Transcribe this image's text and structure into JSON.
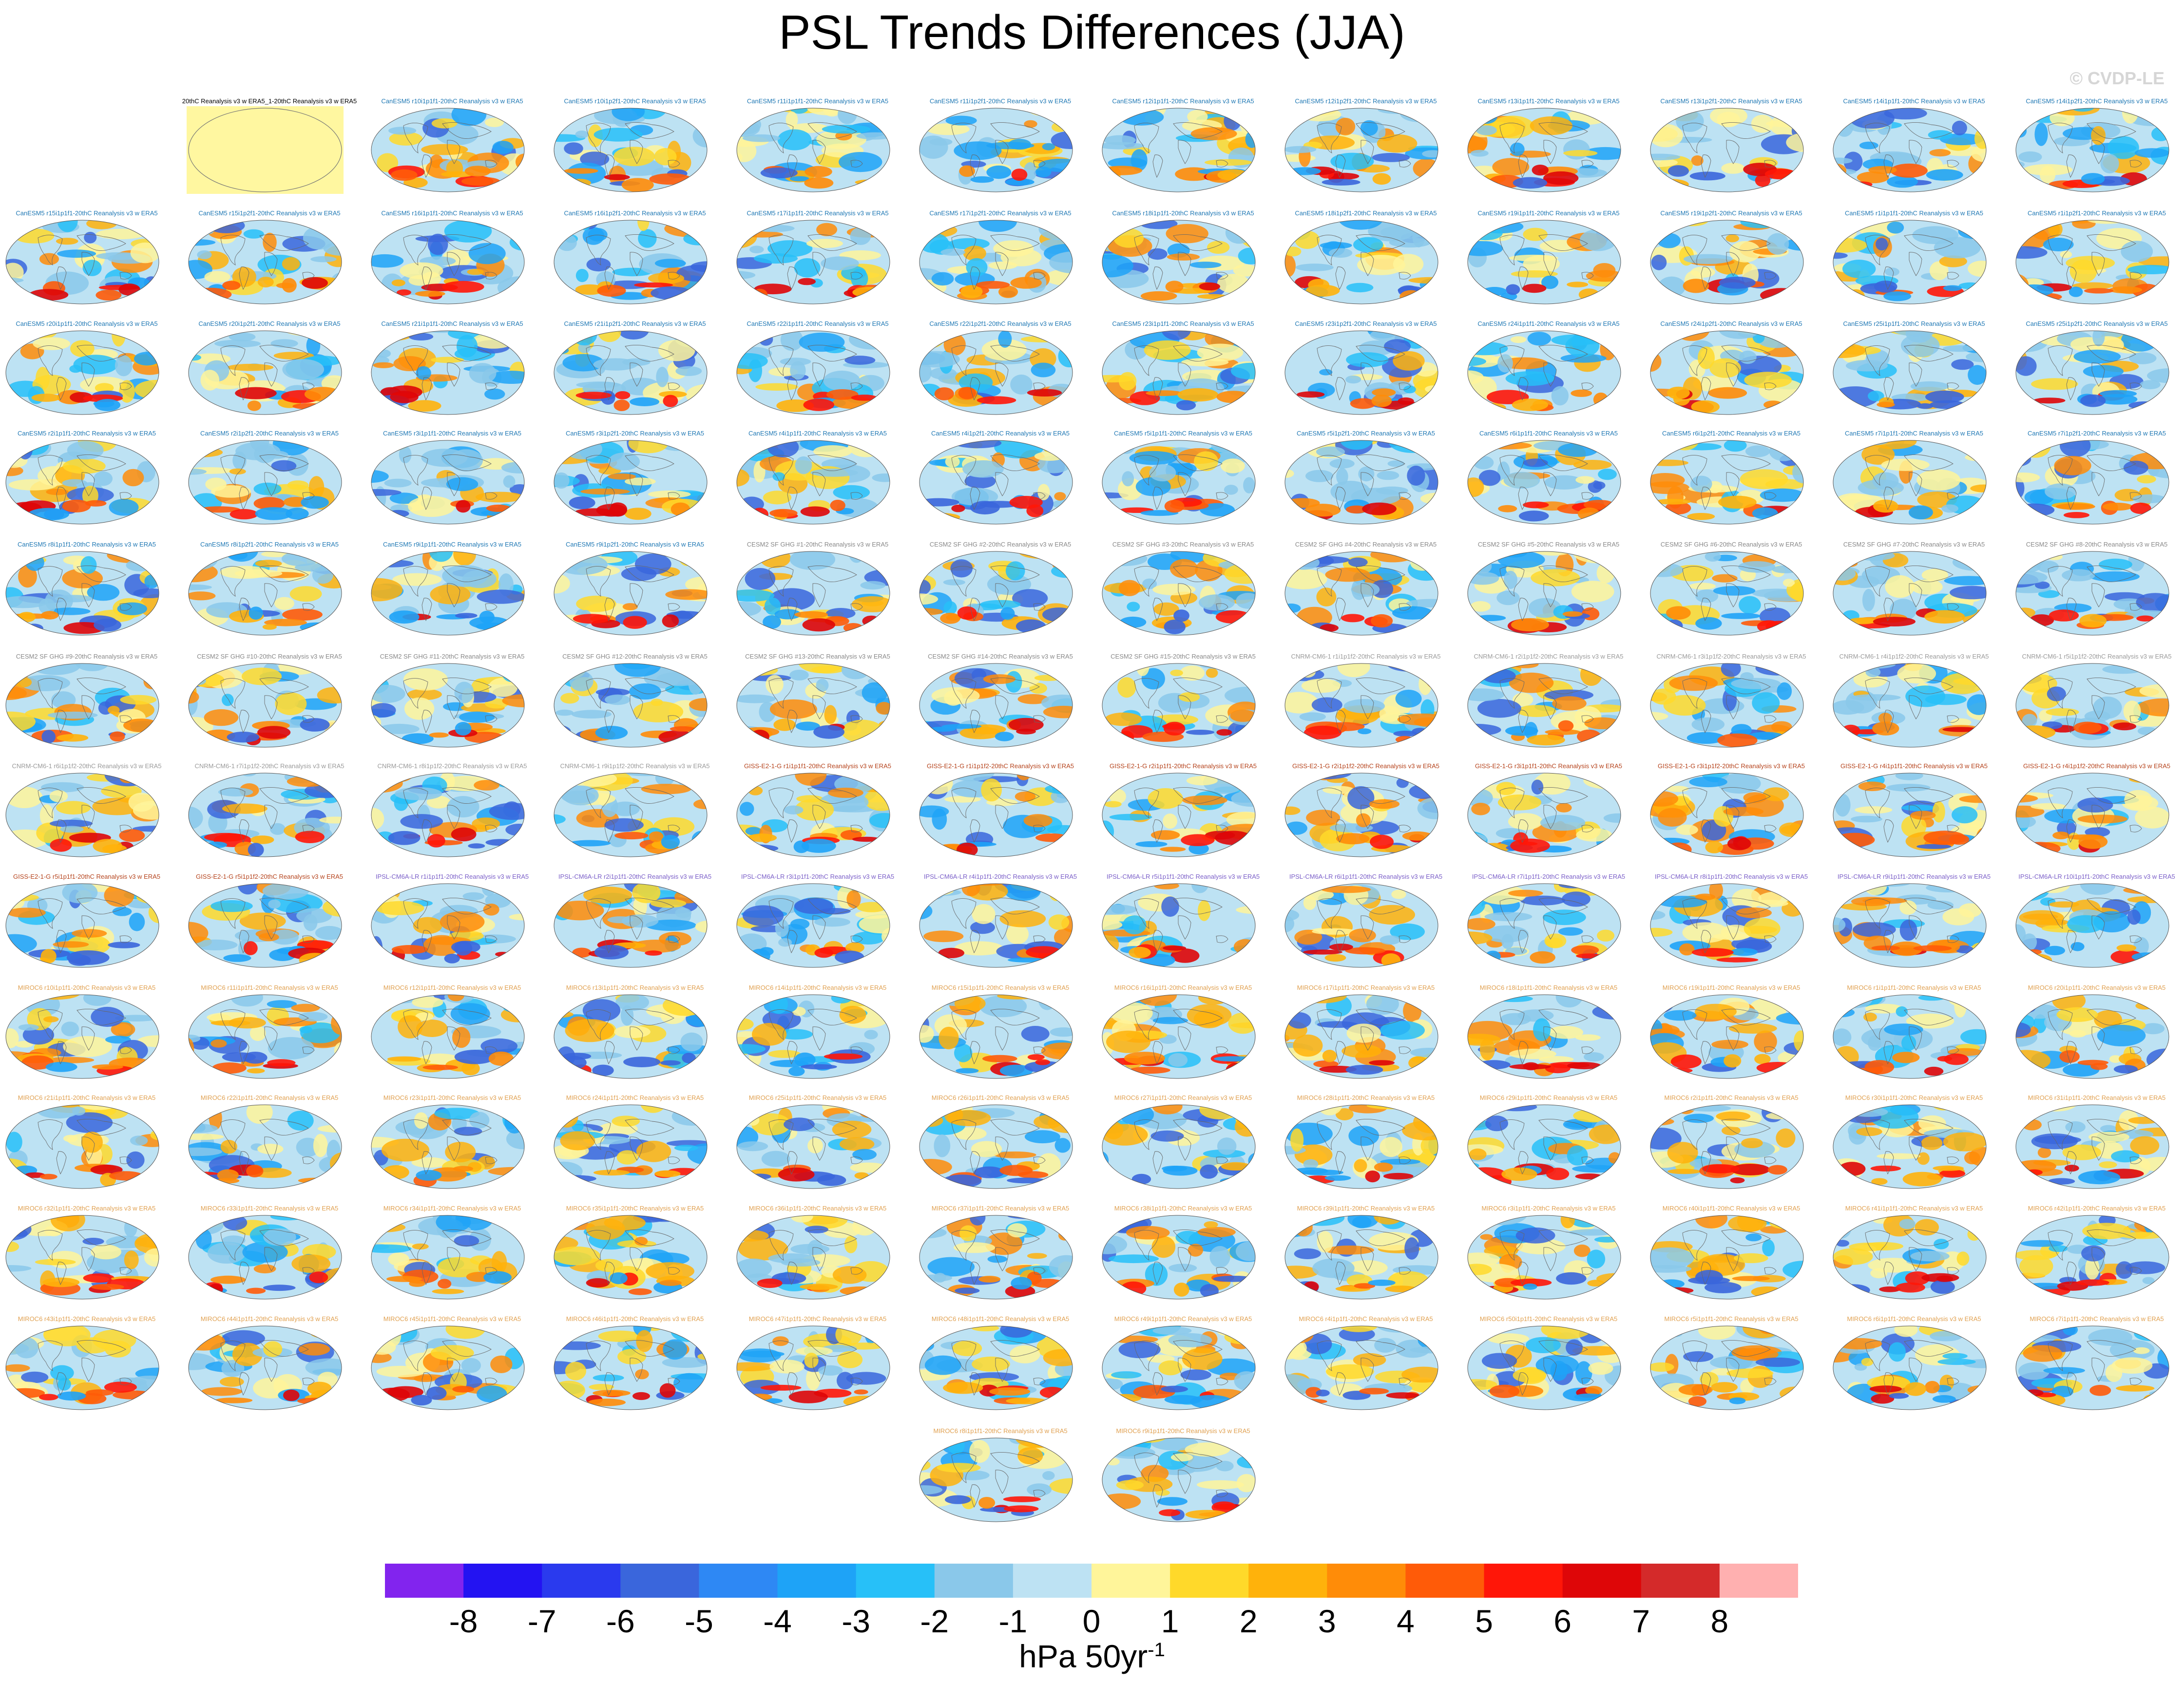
{
  "title": "PSL Trends Differences (JJA)",
  "copyright": "© CVDP-LE",
  "colors": {
    "canesm_label": "#1f78b4",
    "cesm_label": "#888888",
    "cnrm_label": "#9a9a9a",
    "giss_label": "#b5431c",
    "ipsl_label": "#7a5ec8",
    "miroc_label": "#e0a050",
    "obs_label": "#000000",
    "obs_fill": "#fff7a0",
    "ocean_base": "#bde2f3"
  },
  "chart_data": {
    "type": "heatmap",
    "title": "PSL Trends Differences (JJA)",
    "units": "hPa 50yr",
    "units_exponent": "-1",
    "colorbar": {
      "ticks": [
        "-8",
        "-7",
        "-6",
        "-5",
        "-4",
        "-3",
        "-2",
        "-1",
        "0",
        "1",
        "2",
        "3",
        "4",
        "5",
        "6",
        "7",
        "8"
      ],
      "levels": [
        -8,
        -7,
        -6,
        -5,
        -4,
        -3,
        -2,
        -1,
        0,
        1,
        2,
        3,
        4,
        5,
        6,
        7,
        8
      ],
      "colors": [
        "#8224ee",
        "#2313f2",
        "#2a3aee",
        "#3a66dc",
        "#2e88f4",
        "#1ea3f7",
        "#27c0f8",
        "#8ac8ea",
        "#bde2f3",
        "#fff59a",
        "#ffd92a",
        "#ffb20b",
        "#ff8c08",
        "#ff5b08",
        "#ff1608",
        "#de0608",
        "#d42a2a",
        "#ffb0b0"
      ]
    },
    "panels": [
      {
        "label": "20thC Reanalysis v3 w ERA5_1-20thC Reanalysis v3 w ERA5",
        "group": "obs"
      },
      {
        "label": "CanESM5 r10i1p1f1-20thC Reanalysis v3 w ERA5",
        "group": "canesm"
      },
      {
        "label": "CanESM5 r10i1p2f1-20thC Reanalysis v3 w ERA5",
        "group": "canesm"
      },
      {
        "label": "CanESM5 r11i1p1f1-20thC Reanalysis v3 w ERA5",
        "group": "canesm"
      },
      {
        "label": "CanESM5 r11i1p2f1-20thC Reanalysis v3 w ERA5",
        "group": "canesm"
      },
      {
        "label": "CanESM5 r12i1p1f1-20thC Reanalysis v3 w ERA5",
        "group": "canesm"
      },
      {
        "label": "CanESM5 r12i1p2f1-20thC Reanalysis v3 w ERA5",
        "group": "canesm"
      },
      {
        "label": "CanESM5 r13i1p1f1-20thC Reanalysis v3 w ERA5",
        "group": "canesm"
      },
      {
        "label": "CanESM5 r13i1p2f1-20thC Reanalysis v3 w ERA5",
        "group": "canesm"
      },
      {
        "label": "CanESM5 r14i1p1f1-20thC Reanalysis v3 w ERA5",
        "group": "canesm"
      },
      {
        "label": "CanESM5 r14i1p2f1-20thC Reanalysis v3 w ERA5",
        "group": "canesm"
      },
      {
        "label": "CanESM5 r15i1p1f1-20thC Reanalysis v3 w ERA5",
        "group": "canesm"
      },
      {
        "label": "CanESM5 r15i1p2f1-20thC Reanalysis v3 w ERA5",
        "group": "canesm"
      },
      {
        "label": "CanESM5 r16i1p1f1-20thC Reanalysis v3 w ERA5",
        "group": "canesm"
      },
      {
        "label": "CanESM5 r16i1p2f1-20thC Reanalysis v3 w ERA5",
        "group": "canesm"
      },
      {
        "label": "CanESM5 r17i1p1f1-20thC Reanalysis v3 w ERA5",
        "group": "canesm"
      },
      {
        "label": "CanESM5 r17i1p2f1-20thC Reanalysis v3 w ERA5",
        "group": "canesm"
      },
      {
        "label": "CanESM5 r18i1p1f1-20thC Reanalysis v3 w ERA5",
        "group": "canesm"
      },
      {
        "label": "CanESM5 r18i1p2f1-20thC Reanalysis v3 w ERA5",
        "group": "canesm"
      },
      {
        "label": "CanESM5 r19i1p1f1-20thC Reanalysis v3 w ERA5",
        "group": "canesm"
      },
      {
        "label": "CanESM5 r19i1p2f1-20thC Reanalysis v3 w ERA5",
        "group": "canesm"
      },
      {
        "label": "CanESM5 r1i1p1f1-20thC Reanalysis v3 w ERA5",
        "group": "canesm"
      },
      {
        "label": "CanESM5 r1i1p2f1-20thC Reanalysis v3 w ERA5",
        "group": "canesm"
      },
      {
        "label": "CanESM5 r20i1p1f1-20thC Reanalysis v3 w ERA5",
        "group": "canesm"
      },
      {
        "label": "CanESM5 r20i1p2f1-20thC Reanalysis v3 w ERA5",
        "group": "canesm"
      },
      {
        "label": "CanESM5 r21i1p1f1-20thC Reanalysis v3 w ERA5",
        "group": "canesm"
      },
      {
        "label": "CanESM5 r21i1p2f1-20thC Reanalysis v3 w ERA5",
        "group": "canesm"
      },
      {
        "label": "CanESM5 r22i1p1f1-20thC Reanalysis v3 w ERA5",
        "group": "canesm"
      },
      {
        "label": "CanESM5 r22i1p2f1-20thC Reanalysis v3 w ERA5",
        "group": "canesm"
      },
      {
        "label": "CanESM5 r23i1p1f1-20thC Reanalysis v3 w ERA5",
        "group": "canesm"
      },
      {
        "label": "CanESM5 r23i1p2f1-20thC Reanalysis v3 w ERA5",
        "group": "canesm"
      },
      {
        "label": "CanESM5 r24i1p1f1-20thC Reanalysis v3 w ERA5",
        "group": "canesm"
      },
      {
        "label": "CanESM5 r24i1p2f1-20thC Reanalysis v3 w ERA5",
        "group": "canesm"
      },
      {
        "label": "CanESM5 r25i1p1f1-20thC Reanalysis v3 w ERA5",
        "group": "canesm"
      },
      {
        "label": "CanESM5 r25i1p2f1-20thC Reanalysis v3 w ERA5",
        "group": "canesm"
      },
      {
        "label": "CanESM5 r2i1p1f1-20thC Reanalysis v3 w ERA5",
        "group": "canesm"
      },
      {
        "label": "CanESM5 r2i1p2f1-20thC Reanalysis v3 w ERA5",
        "group": "canesm"
      },
      {
        "label": "CanESM5 r3i1p1f1-20thC Reanalysis v3 w ERA5",
        "group": "canesm"
      },
      {
        "label": "CanESM5 r3i1p2f1-20thC Reanalysis v3 w ERA5",
        "group": "canesm"
      },
      {
        "label": "CanESM5 r4i1p1f1-20thC Reanalysis v3 w ERA5",
        "group": "canesm"
      },
      {
        "label": "CanESM5 r4i1p2f1-20thC Reanalysis v3 w ERA5",
        "group": "canesm"
      },
      {
        "label": "CanESM5 r5i1p1f1-20thC Reanalysis v3 w ERA5",
        "group": "canesm"
      },
      {
        "label": "CanESM5 r5i1p2f1-20thC Reanalysis v3 w ERA5",
        "group": "canesm"
      },
      {
        "label": "CanESM5 r6i1p1f1-20thC Reanalysis v3 w ERA5",
        "group": "canesm"
      },
      {
        "label": "CanESM5 r6i1p2f1-20thC Reanalysis v3 w ERA5",
        "group": "canesm"
      },
      {
        "label": "CanESM5 r7i1p1f1-20thC Reanalysis v3 w ERA5",
        "group": "canesm"
      },
      {
        "label": "CanESM5 r7i1p2f1-20thC Reanalysis v3 w ERA5",
        "group": "canesm"
      },
      {
        "label": "CanESM5 r8i1p1f1-20thC Reanalysis v3 w ERA5",
        "group": "canesm"
      },
      {
        "label": "CanESM5 r8i1p2f1-20thC Reanalysis v3 w ERA5",
        "group": "canesm"
      },
      {
        "label": "CanESM5 r9i1p1f1-20thC Reanalysis v3 w ERA5",
        "group": "canesm"
      },
      {
        "label": "CanESM5 r9i1p2f1-20thC Reanalysis v3 w ERA5",
        "group": "canesm"
      },
      {
        "label": "CESM2 SF GHG #1-20thC Reanalysis v3 w ERA5",
        "group": "cesm"
      },
      {
        "label": "CESM2 SF GHG #2-20thC Reanalysis v3 w ERA5",
        "group": "cesm"
      },
      {
        "label": "CESM2 SF GHG #3-20thC Reanalysis v3 w ERA5",
        "group": "cesm"
      },
      {
        "label": "CESM2 SF GHG #4-20thC Reanalysis v3 w ERA5",
        "group": "cesm"
      },
      {
        "label": "CESM2 SF GHG #5-20thC Reanalysis v3 w ERA5",
        "group": "cesm"
      },
      {
        "label": "CESM2 SF GHG #6-20thC Reanalysis v3 w ERA5",
        "group": "cesm"
      },
      {
        "label": "CESM2 SF GHG #7-20thC Reanalysis v3 w ERA5",
        "group": "cesm"
      },
      {
        "label": "CESM2 SF GHG #8-20thC Reanalysis v3 w ERA5",
        "group": "cesm"
      },
      {
        "label": "CESM2 SF GHG #9-20thC Reanalysis v3 w ERA5",
        "group": "cesm"
      },
      {
        "label": "CESM2 SF GHG #10-20thC Reanalysis v3 w ERA5",
        "group": "cesm"
      },
      {
        "label": "CESM2 SF GHG #11-20thC Reanalysis v3 w ERA5",
        "group": "cesm"
      },
      {
        "label": "CESM2 SF GHG #12-20thC Reanalysis v3 w ERA5",
        "group": "cesm"
      },
      {
        "label": "CESM2 SF GHG #13-20thC Reanalysis v3 w ERA5",
        "group": "cesm"
      },
      {
        "label": "CESM2 SF GHG #14-20thC Reanalysis v3 w ERA5",
        "group": "cesm"
      },
      {
        "label": "CESM2 SF GHG #15-20thC Reanalysis v3 w ERA5",
        "group": "cesm"
      },
      {
        "label": "CNRM-CM6-1 r1i1p1f2-20thC Reanalysis v3 w ERA5",
        "group": "cnrm"
      },
      {
        "label": "CNRM-CM6-1 r2i1p1f2-20thC Reanalysis v3 w ERA5",
        "group": "cnrm"
      },
      {
        "label": "CNRM-CM6-1 r3i1p1f2-20thC Reanalysis v3 w ERA5",
        "group": "cnrm"
      },
      {
        "label": "CNRM-CM6-1 r4i1p1f2-20thC Reanalysis v3 w ERA5",
        "group": "cnrm"
      },
      {
        "label": "CNRM-CM6-1 r5i1p1f2-20thC Reanalysis v3 w ERA5",
        "group": "cnrm"
      },
      {
        "label": "CNRM-CM6-1 r6i1p1f2-20thC Reanalysis v3 w ERA5",
        "group": "cnrm"
      },
      {
        "label": "CNRM-CM6-1 r7i1p1f2-20thC Reanalysis v3 w ERA5",
        "group": "cnrm"
      },
      {
        "label": "CNRM-CM6-1 r8i1p1f2-20thC Reanalysis v3 w ERA5",
        "group": "cnrm"
      },
      {
        "label": "CNRM-CM6-1 r9i1p1f2-20thC Reanalysis v3 w ERA5",
        "group": "cnrm"
      },
      {
        "label": "GISS-E2-1-G r1i1p1f1-20thC Reanalysis v3 w ERA5",
        "group": "giss"
      },
      {
        "label": "GISS-E2-1-G r1i1p1f2-20thC Reanalysis v3 w ERA5",
        "group": "giss"
      },
      {
        "label": "GISS-E2-1-G r2i1p1f1-20thC Reanalysis v3 w ERA5",
        "group": "giss"
      },
      {
        "label": "GISS-E2-1-G r2i1p1f2-20thC Reanalysis v3 w ERA5",
        "group": "giss"
      },
      {
        "label": "GISS-E2-1-G r3i1p1f1-20thC Reanalysis v3 w ERA5",
        "group": "giss"
      },
      {
        "label": "GISS-E2-1-G r3i1p1f2-20thC Reanalysis v3 w ERA5",
        "group": "giss"
      },
      {
        "label": "GISS-E2-1-G r4i1p1f1-20thC Reanalysis v3 w ERA5",
        "group": "giss"
      },
      {
        "label": "GISS-E2-1-G r4i1p1f2-20thC Reanalysis v3 w ERA5",
        "group": "giss"
      },
      {
        "label": "GISS-E2-1-G r5i1p1f1-20thC Reanalysis v3 w ERA5",
        "group": "giss"
      },
      {
        "label": "GISS-E2-1-G r5i1p1f2-20thC Reanalysis v3 w ERA5",
        "group": "giss"
      },
      {
        "label": "IPSL-CM6A-LR r1i1p1f1-20thC Reanalysis v3 w ERA5",
        "group": "ipsl"
      },
      {
        "label": "IPSL-CM6A-LR r2i1p1f1-20thC Reanalysis v3 w ERA5",
        "group": "ipsl"
      },
      {
        "label": "IPSL-CM6A-LR r3i1p1f1-20thC Reanalysis v3 w ERA5",
        "group": "ipsl"
      },
      {
        "label": "IPSL-CM6A-LR r4i1p1f1-20thC Reanalysis v3 w ERA5",
        "group": "ipsl"
      },
      {
        "label": "IPSL-CM6A-LR r5i1p1f1-20thC Reanalysis v3 w ERA5",
        "group": "ipsl"
      },
      {
        "label": "IPSL-CM6A-LR r6i1p1f1-20thC Reanalysis v3 w ERA5",
        "group": "ipsl"
      },
      {
        "label": "IPSL-CM6A-LR r7i1p1f1-20thC Reanalysis v3 w ERA5",
        "group": "ipsl"
      },
      {
        "label": "IPSL-CM6A-LR r8i1p1f1-20thC Reanalysis v3 w ERA5",
        "group": "ipsl"
      },
      {
        "label": "IPSL-CM6A-LR r9i1p1f1-20thC Reanalysis v3 w ERA5",
        "group": "ipsl"
      },
      {
        "label": "IPSL-CM6A-LR r10i1p1f1-20thC Reanalysis v3 w ERA5",
        "group": "ipsl"
      },
      {
        "label": "MIROC6 r10i1p1f1-20thC Reanalysis v3 w ERA5",
        "group": "miroc"
      },
      {
        "label": "MIROC6 r11i1p1f1-20thC Reanalysis v3 w ERA5",
        "group": "miroc"
      },
      {
        "label": "MIROC6 r12i1p1f1-20thC Reanalysis v3 w ERA5",
        "group": "miroc"
      },
      {
        "label": "MIROC6 r13i1p1f1-20thC Reanalysis v3 w ERA5",
        "group": "miroc"
      },
      {
        "label": "MIROC6 r14i1p1f1-20thC Reanalysis v3 w ERA5",
        "group": "miroc"
      },
      {
        "label": "MIROC6 r15i1p1f1-20thC Reanalysis v3 w ERA5",
        "group": "miroc"
      },
      {
        "label": "MIROC6 r16i1p1f1-20thC Reanalysis v3 w ERA5",
        "group": "miroc"
      },
      {
        "label": "MIROC6 r17i1p1f1-20thC Reanalysis v3 w ERA5",
        "group": "miroc"
      },
      {
        "label": "MIROC6 r18i1p1f1-20thC Reanalysis v3 w ERA5",
        "group": "miroc"
      },
      {
        "label": "MIROC6 r19i1p1f1-20thC Reanalysis v3 w ERA5",
        "group": "miroc"
      },
      {
        "label": "MIROC6 r1i1p1f1-20thC Reanalysis v3 w ERA5",
        "group": "miroc"
      },
      {
        "label": "MIROC6 r20i1p1f1-20thC Reanalysis v3 w ERA5",
        "group": "miroc"
      },
      {
        "label": "MIROC6 r21i1p1f1-20thC Reanalysis v3 w ERA5",
        "group": "miroc"
      },
      {
        "label": "MIROC6 r22i1p1f1-20thC Reanalysis v3 w ERA5",
        "group": "miroc"
      },
      {
        "label": "MIROC6 r23i1p1f1-20thC Reanalysis v3 w ERA5",
        "group": "miroc"
      },
      {
        "label": "MIROC6 r24i1p1f1-20thC Reanalysis v3 w ERA5",
        "group": "miroc"
      },
      {
        "label": "MIROC6 r25i1p1f1-20thC Reanalysis v3 w ERA5",
        "group": "miroc"
      },
      {
        "label": "MIROC6 r26i1p1f1-20thC Reanalysis v3 w ERA5",
        "group": "miroc"
      },
      {
        "label": "MIROC6 r27i1p1f1-20thC Reanalysis v3 w ERA5",
        "group": "miroc"
      },
      {
        "label": "MIROC6 r28i1p1f1-20thC Reanalysis v3 w ERA5",
        "group": "miroc"
      },
      {
        "label": "MIROC6 r29i1p1f1-20thC Reanalysis v3 w ERA5",
        "group": "miroc"
      },
      {
        "label": "MIROC6 r2i1p1f1-20thC Reanalysis v3 w ERA5",
        "group": "miroc"
      },
      {
        "label": "MIROC6 r30i1p1f1-20thC Reanalysis v3 w ERA5",
        "group": "miroc"
      },
      {
        "label": "MIROC6 r31i1p1f1-20thC Reanalysis v3 w ERA5",
        "group": "miroc"
      },
      {
        "label": "MIROC6 r32i1p1f1-20thC Reanalysis v3 w ERA5",
        "group": "miroc"
      },
      {
        "label": "MIROC6 r33i1p1f1-20thC Reanalysis v3 w ERA5",
        "group": "miroc"
      },
      {
        "label": "MIROC6 r34i1p1f1-20thC Reanalysis v3 w ERA5",
        "group": "miroc"
      },
      {
        "label": "MIROC6 r35i1p1f1-20thC Reanalysis v3 w ERA5",
        "group": "miroc"
      },
      {
        "label": "MIROC6 r36i1p1f1-20thC Reanalysis v3 w ERA5",
        "group": "miroc"
      },
      {
        "label": "MIROC6 r37i1p1f1-20thC Reanalysis v3 w ERA5",
        "group": "miroc"
      },
      {
        "label": "MIROC6 r38i1p1f1-20thC Reanalysis v3 w ERA5",
        "group": "miroc"
      },
      {
        "label": "MIROC6 r39i1p1f1-20thC Reanalysis v3 w ERA5",
        "group": "miroc"
      },
      {
        "label": "MIROC6 r3i1p1f1-20thC Reanalysis v3 w ERA5",
        "group": "miroc"
      },
      {
        "label": "MIROC6 r40i1p1f1-20thC Reanalysis v3 w ERA5",
        "group": "miroc"
      },
      {
        "label": "MIROC6 r41i1p1f1-20thC Reanalysis v3 w ERA5",
        "group": "miroc"
      },
      {
        "label": "MIROC6 r42i1p1f1-20thC Reanalysis v3 w ERA5",
        "group": "miroc"
      },
      {
        "label": "MIROC6 r43i1p1f1-20thC Reanalysis v3 w ERA5",
        "group": "miroc"
      },
      {
        "label": "MIROC6 r44i1p1f1-20thC Reanalysis v3 w ERA5",
        "group": "miroc"
      },
      {
        "label": "MIROC6 r45i1p1f1-20thC Reanalysis v3 w ERA5",
        "group": "miroc"
      },
      {
        "label": "MIROC6 r46i1p1f1-20thC Reanalysis v3 w ERA5",
        "group": "miroc"
      },
      {
        "label": "MIROC6 r47i1p1f1-20thC Reanalysis v3 w ERA5",
        "group": "miroc"
      },
      {
        "label": "MIROC6 r48i1p1f1-20thC Reanalysis v3 w ERA5",
        "group": "miroc"
      },
      {
        "label": "MIROC6 r49i1p1f1-20thC Reanalysis v3 w ERA5",
        "group": "miroc"
      },
      {
        "label": "MIROC6 r4i1p1f1-20thC Reanalysis v3 w ERA5",
        "group": "miroc"
      },
      {
        "label": "MIROC6 r50i1p1f1-20thC Reanalysis v3 w ERA5",
        "group": "miroc"
      },
      {
        "label": "MIROC6 r5i1p1f1-20thC Reanalysis v3 w ERA5",
        "group": "miroc"
      },
      {
        "label": "MIROC6 r6i1p1f1-20thC Reanalysis v3 w ERA5",
        "group": "miroc"
      },
      {
        "label": "MIROC6 r7i1p1f1-20thC Reanalysis v3 w ERA5",
        "group": "miroc"
      },
      {
        "label": "MIROC6 r8i1p1f1-20thC Reanalysis v3 w ERA5",
        "group": "miroc"
      },
      {
        "label": "MIROC6 r9i1p1f1-20thC Reanalysis v3 w ERA5",
        "group": "miroc"
      }
    ]
  }
}
